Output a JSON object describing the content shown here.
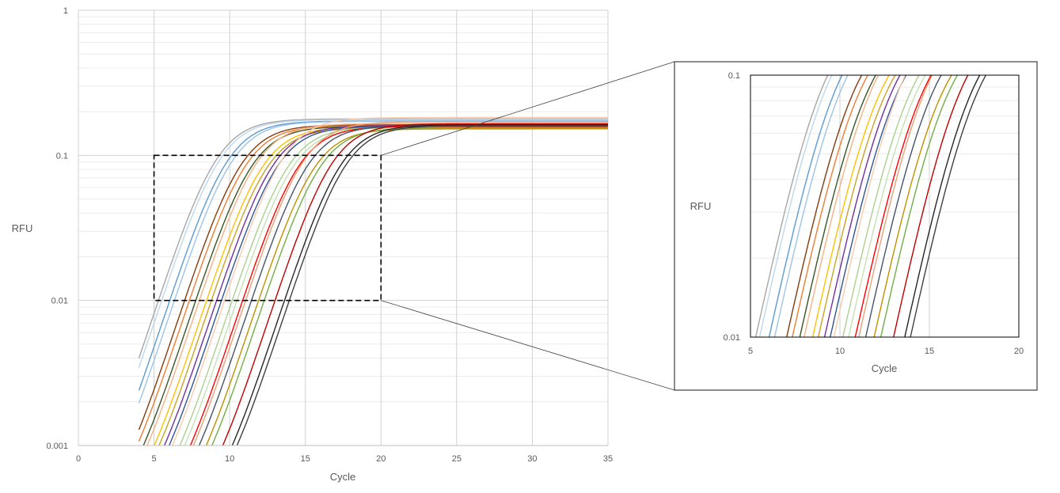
{
  "chart_data": [
    {
      "id": "main",
      "type": "line",
      "xlabel": "Cycle",
      "ylabel": "RFU",
      "xlim": [
        0,
        35
      ],
      "ylim": [
        0.001,
        1
      ],
      "y_scale": "log",
      "x_ticks": [
        {
          "v": 0,
          "label": "0"
        },
        {
          "v": 5,
          "label": "5"
        },
        {
          "v": 10,
          "label": "10"
        },
        {
          "v": 15,
          "label": "15"
        },
        {
          "v": 20,
          "label": "20"
        },
        {
          "v": 25,
          "label": "25"
        },
        {
          "v": 30,
          "label": "30"
        },
        {
          "v": 35,
          "label": "35"
        }
      ],
      "y_ticks": [
        {
          "v": 0.001,
          "label": "0.001"
        },
        {
          "v": 0.01,
          "label": "0.01"
        },
        {
          "v": 0.1,
          "label": "0.1"
        },
        {
          "v": 1,
          "label": "1"
        }
      ],
      "grid": true,
      "zoom_region": {
        "x": [
          5,
          20
        ],
        "y": [
          0.01,
          0.1
        ]
      }
    },
    {
      "id": "inset",
      "type": "line",
      "xlabel": "Cycle",
      "ylabel": "RFU",
      "xlim": [
        5,
        20
      ],
      "ylim": [
        0.01,
        0.1
      ],
      "y_scale": "log",
      "x_ticks": [
        {
          "v": 5,
          "label": "5"
        },
        {
          "v": 10,
          "label": "10"
        },
        {
          "v": 15,
          "label": "15"
        },
        {
          "v": 20,
          "label": "20"
        }
      ],
      "y_ticks": [
        {
          "v": 0.01,
          "label": "0.01"
        },
        {
          "v": 0.1,
          "label": "0.1"
        }
      ],
      "grid": true
    }
  ],
  "amplification_curves": [
    {
      "color": "#a6a6a6",
      "c_mid": 9.0,
      "plateau": 0.178
    },
    {
      "color": "#bdd7ee",
      "c_mid": 9.2,
      "plateau": 0.176
    },
    {
      "color": "#5b9bd5",
      "c_mid": 9.7,
      "plateau": 0.172
    },
    {
      "color": "#9dc3e6",
      "c_mid": 10.0,
      "plateau": 0.171
    },
    {
      "color": "#843c0c",
      "c_mid": 10.6,
      "plateau": 0.162
    },
    {
      "color": "#ed7d31",
      "c_mid": 10.9,
      "plateau": 0.16
    },
    {
      "color": "#375623",
      "c_mid": 11.3,
      "plateau": 0.158
    },
    {
      "color": "#f4b183",
      "c_mid": 11.6,
      "plateau": 0.165
    },
    {
      "color": "#ffc000",
      "c_mid": 12.0,
      "plateau": 0.156
    },
    {
      "color": "#c9a227",
      "c_mid": 12.3,
      "plateau": 0.154
    },
    {
      "color": "#7030a0",
      "c_mid": 12.7,
      "plateau": 0.16
    },
    {
      "color": "#2f5597",
      "c_mid": 13.0,
      "plateau": 0.158
    },
    {
      "color": "#f8cbad",
      "c_mid": 13.4,
      "plateau": 0.182
    },
    {
      "color": "#a9d18e",
      "c_mid": 13.7,
      "plateau": 0.157
    },
    {
      "color": "#c5e0b4",
      "c_mid": 14.0,
      "plateau": 0.155
    },
    {
      "color": "#ff0000",
      "c_mid": 14.4,
      "plateau": 0.158
    },
    {
      "color": "#e8a07a",
      "c_mid": 14.7,
      "plateau": 0.17
    },
    {
      "color": "#44546a",
      "c_mid": 15.0,
      "plateau": 0.16
    },
    {
      "color": "#bf9000",
      "c_mid": 15.4,
      "plateau": 0.152
    },
    {
      "color": "#70ad47",
      "c_mid": 15.8,
      "plateau": 0.155
    },
    {
      "color": "#c00000",
      "c_mid": 16.6,
      "plateau": 0.165
    },
    {
      "color": "#262626",
      "c_mid": 17.2,
      "plateau": 0.162
    },
    {
      "color": "#404040",
      "c_mid": 17.5,
      "plateau": 0.16
    }
  ]
}
